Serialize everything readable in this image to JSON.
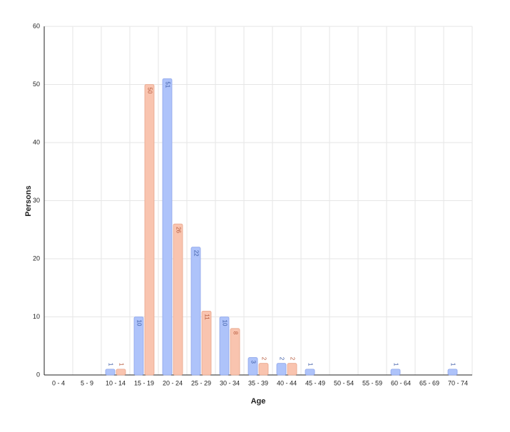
{
  "chart_data": {
    "type": "bar",
    "x_label": "Age",
    "y_label": "Persons",
    "categories": [
      "0 - 4",
      "5 - 9",
      "10 - 14",
      "15 - 19",
      "20 - 24",
      "25 - 29",
      "30 - 34",
      "35 - 39",
      "40 - 44",
      "45 - 49",
      "50 - 54",
      "55 - 59",
      "60 - 64",
      "65 - 69",
      "70 - 74"
    ],
    "series": [
      {
        "color": "#aec3fa",
        "values": [
          0,
          0,
          1,
          10,
          51,
          22,
          10,
          3,
          2,
          1,
          0,
          0,
          1,
          0,
          1
        ]
      },
      {
        "color": "#f9c4af",
        "values": [
          0,
          0,
          1,
          50,
          26,
          11,
          8,
          2,
          2,
          0,
          0,
          0,
          0,
          0,
          0
        ]
      }
    ],
    "ylim": [
      0,
      60
    ],
    "yticks": [
      0,
      10,
      20,
      30,
      40,
      50,
      60
    ],
    "grid": true
  }
}
